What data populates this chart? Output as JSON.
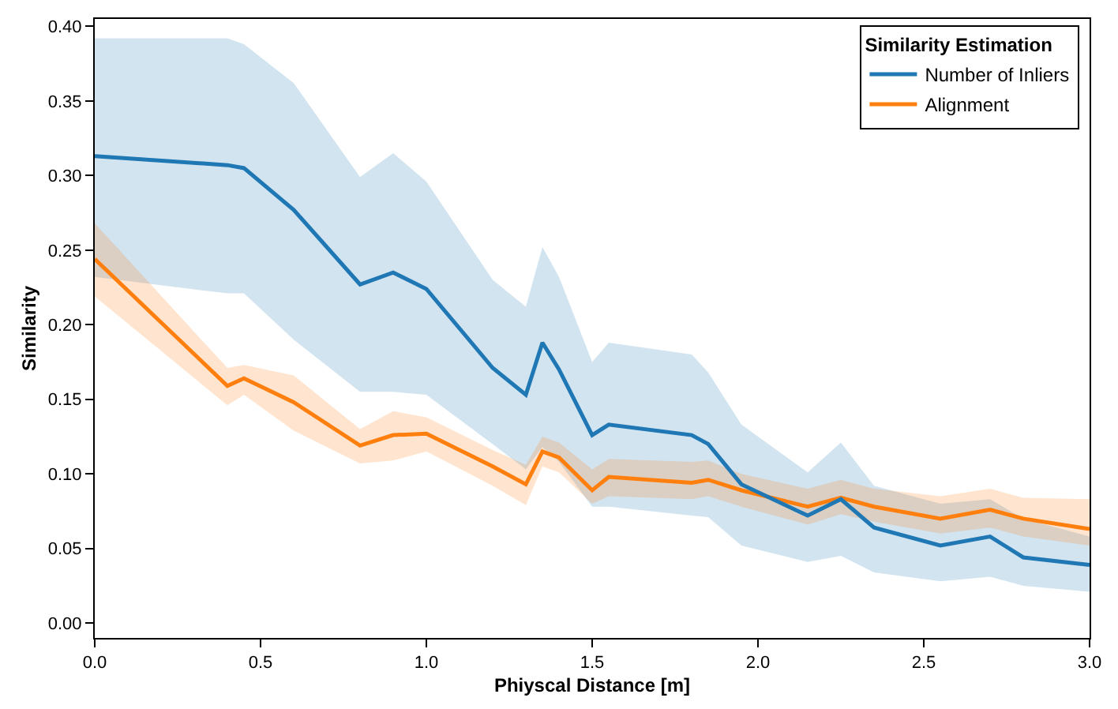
{
  "chart_data": {
    "type": "line",
    "xlabel": "Phiyscal Distance [m]",
    "ylabel": "Similarity",
    "legend_title": "Similarity Estimation",
    "legend": "top right",
    "marker": "none",
    "line_style": "solid",
    "x": [
      0,
      0.4,
      0.45,
      0.6,
      0.8,
      0.9,
      1.0,
      1.2,
      1.3,
      1.35,
      1.4,
      1.5,
      1.55,
      1.8,
      1.85,
      1.95,
      2.15,
      2.25,
      2.35,
      2.55,
      2.7,
      2.8,
      3.0
    ],
    "xlim": [
      0,
      3.0
    ],
    "xticks": [
      {
        "value": 0,
        "label": "0.0"
      },
      0.5,
      {
        "value": 1,
        "label": "1.0"
      },
      1.5,
      {
        "value": 2,
        "label": "2.0"
      },
      2.5,
      {
        "value": 3,
        "label": "3.0"
      }
    ],
    "ylim": [
      -0.01,
      0.405
    ],
    "yticks": [
      {
        "value": 0,
        "label": "0.00"
      },
      0.05,
      {
        "value": 0.1,
        "label": "0.10"
      },
      0.15,
      {
        "value": 0.2,
        "label": "0.20"
      },
      0.25,
      {
        "value": 0.3,
        "label": "0.30"
      },
      0.35,
      {
        "value": 0.4,
        "label": "0.40"
      }
    ],
    "series": [
      {
        "name": "Number of Inliers",
        "color": "#1f77b4",
        "values": [
          0.313,
          0.307,
          0.305,
          0.277,
          0.227,
          0.235,
          0.224,
          0.171,
          0.153,
          0.188,
          0.17,
          0.126,
          0.133,
          0.126,
          0.12,
          0.093,
          0.072,
          0.083,
          0.064,
          0.052,
          0.058,
          0.044,
          0.039
        ],
        "upper": [
          0.392,
          0.392,
          0.388,
          0.362,
          0.299,
          0.315,
          0.296,
          0.23,
          0.212,
          0.252,
          0.232,
          0.175,
          0.188,
          0.18,
          0.168,
          0.133,
          0.101,
          0.121,
          0.092,
          0.08,
          0.083,
          0.07,
          0.058
        ],
        "lower": [
          0.232,
          0.221,
          0.221,
          0.19,
          0.155,
          0.155,
          0.153,
          0.12,
          0.103,
          0.118,
          0.108,
          0.078,
          0.078,
          0.072,
          0.071,
          0.052,
          0.041,
          0.045,
          0.034,
          0.028,
          0.031,
          0.025,
          0.021
        ]
      },
      {
        "name": "Alignment",
        "color": "#ff7f0e",
        "values": [
          0.244,
          0.159,
          0.164,
          0.148,
          0.119,
          0.126,
          0.127,
          0.105,
          0.093,
          0.115,
          0.111,
          0.089,
          0.098,
          0.094,
          0.096,
          0.089,
          0.078,
          0.084,
          0.078,
          0.07,
          0.076,
          0.07,
          0.063
        ],
        "upper": [
          0.268,
          0.171,
          0.173,
          0.166,
          0.13,
          0.142,
          0.138,
          0.116,
          0.106,
          0.125,
          0.121,
          0.103,
          0.11,
          0.108,
          0.109,
          0.1,
          0.09,
          0.096,
          0.09,
          0.085,
          0.09,
          0.084,
          0.083
        ],
        "lower": [
          0.219,
          0.146,
          0.153,
          0.129,
          0.107,
          0.109,
          0.115,
          0.092,
          0.079,
          0.105,
          0.101,
          0.08,
          0.085,
          0.083,
          0.085,
          0.078,
          0.066,
          0.073,
          0.068,
          0.06,
          0.064,
          0.058,
          0.052
        ]
      }
    ]
  }
}
